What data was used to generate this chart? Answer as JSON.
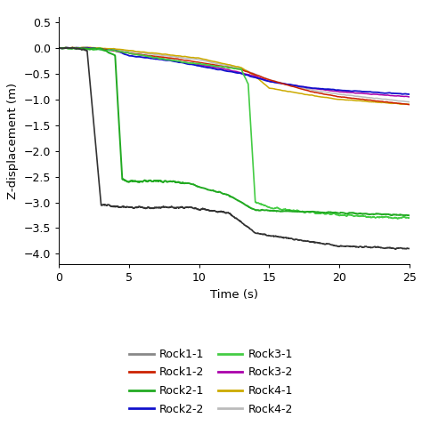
{
  "xlim": [
    0,
    25
  ],
  "ylim": [
    -4.2,
    0.6
  ],
  "yticks": [
    0.5,
    0.0,
    -0.5,
    -1.0,
    -1.5,
    -2.0,
    -2.5,
    -3.0,
    -3.5,
    -4.0
  ],
  "xticks": [
    0,
    5,
    10,
    15,
    20,
    25
  ],
  "xlabel": "Time (s)",
  "ylabel": "Z-displacement (m)",
  "colors": {
    "Rock1-1": "#333333",
    "Rock1-2": "#cc2200",
    "Rock2-1": "#22aa22",
    "Rock2-2": "#1111cc",
    "Rock3-1": "#44cc44",
    "Rock3-2": "#aa00aa",
    "Rock4-1": "#ccaa00",
    "Rock4-2": "#bbbbbb"
  },
  "legend_colors": {
    "Rock1-1": "#888888",
    "Rock1-2": "#cc2200",
    "Rock2-1": "#22aa22",
    "Rock2-2": "#1111cc",
    "Rock3-1": "#44cc44",
    "Rock3-2": "#aa00aa",
    "Rock4-1": "#ccaa00",
    "Rock4-2": "#bbbbbb"
  },
  "bg_color": "#ffffff",
  "curves": {
    "Rock1-1": {
      "segments": [
        [
          0,
          0.0
        ],
        [
          1,
          0.0
        ],
        [
          2,
          -0.05
        ],
        [
          3,
          -3.05
        ],
        [
          5,
          -3.1
        ],
        [
          9,
          -3.1
        ],
        [
          10,
          -3.12
        ],
        [
          12,
          -3.2
        ],
        [
          13,
          -3.38
        ],
        [
          14,
          -3.6
        ],
        [
          20,
          -3.85
        ],
        [
          25,
          -3.9
        ]
      ],
      "noise": 0.025,
      "lw": 1.2
    },
    "Rock1-2": {
      "segments": [
        [
          0,
          0.0
        ],
        [
          1,
          0.0
        ],
        [
          3,
          -0.02
        ],
        [
          5,
          -0.1
        ],
        [
          8,
          -0.2
        ],
        [
          10,
          -0.28
        ],
        [
          13,
          -0.42
        ],
        [
          15,
          -0.62
        ],
        [
          18,
          -0.85
        ],
        [
          20,
          -0.95
        ],
        [
          25,
          -1.1
        ]
      ],
      "noise": 0.012,
      "lw": 1.1
    },
    "Rock2-1": {
      "segments": [
        [
          0,
          0.0
        ],
        [
          3,
          -0.02
        ],
        [
          4,
          -0.15
        ],
        [
          4.5,
          -2.55
        ],
        [
          5,
          -2.6
        ],
        [
          7,
          -2.58
        ],
        [
          8,
          -2.6
        ],
        [
          9,
          -2.62
        ],
        [
          9.5,
          -2.65
        ],
        [
          10,
          -2.7
        ],
        [
          12,
          -2.85
        ],
        [
          13,
          -3.0
        ],
        [
          14,
          -3.15
        ],
        [
          25,
          -3.25
        ]
      ],
      "noise": 0.022,
      "lw": 1.4
    },
    "Rock2-2": {
      "segments": [
        [
          0,
          0.0
        ],
        [
          2,
          0.0
        ],
        [
          4,
          -0.05
        ],
        [
          5,
          -0.15
        ],
        [
          8,
          -0.25
        ],
        [
          10,
          -0.35
        ],
        [
          13,
          -0.5
        ],
        [
          15,
          -0.65
        ],
        [
          18,
          -0.78
        ],
        [
          20,
          -0.82
        ],
        [
          25,
          -0.9
        ]
      ],
      "noise": 0.012,
      "lw": 1.3
    },
    "Rock3-1": {
      "segments": [
        [
          0,
          0.0
        ],
        [
          4,
          -0.05
        ],
        [
          6,
          -0.15
        ],
        [
          9,
          -0.28
        ],
        [
          12,
          -0.38
        ],
        [
          13,
          -0.42
        ],
        [
          13.5,
          -0.7
        ],
        [
          14,
          -3.0
        ],
        [
          15,
          -3.1
        ],
        [
          18,
          -3.2
        ],
        [
          22,
          -3.28
        ],
        [
          25,
          -3.3
        ]
      ],
      "noise": 0.022,
      "lw": 1.2
    },
    "Rock3-2": {
      "segments": [
        [
          0,
          0.0
        ],
        [
          2,
          0.0
        ],
        [
          4,
          -0.05
        ],
        [
          6,
          -0.15
        ],
        [
          9,
          -0.28
        ],
        [
          12,
          -0.42
        ],
        [
          14,
          -0.55
        ],
        [
          15,
          -0.65
        ],
        [
          18,
          -0.78
        ],
        [
          20,
          -0.85
        ],
        [
          25,
          -0.95
        ]
      ],
      "noise": 0.012,
      "lw": 1.1
    },
    "Rock4-1": {
      "segments": [
        [
          0,
          0.0
        ],
        [
          2,
          0.01
        ],
        [
          4,
          -0.02
        ],
        [
          6,
          -0.08
        ],
        [
          10,
          -0.2
        ],
        [
          13,
          -0.38
        ],
        [
          14,
          -0.55
        ],
        [
          15,
          -0.78
        ],
        [
          18,
          -0.92
        ],
        [
          20,
          -1.0
        ],
        [
          25,
          -1.1
        ]
      ],
      "noise": 0.012,
      "lw": 1.1
    },
    "Rock4-2": {
      "segments": [
        [
          0,
          0.0
        ],
        [
          2,
          0.0
        ],
        [
          4,
          -0.03
        ],
        [
          6,
          -0.1
        ],
        [
          10,
          -0.23
        ],
        [
          13,
          -0.4
        ],
        [
          15,
          -0.62
        ],
        [
          18,
          -0.82
        ],
        [
          20,
          -0.9
        ],
        [
          25,
          -1.05
        ]
      ],
      "noise": 0.012,
      "lw": 1.1
    }
  },
  "legend_order": [
    "Rock1-1",
    "Rock1-2",
    "Rock2-1",
    "Rock2-2",
    "Rock3-1",
    "Rock3-2",
    "Rock4-1",
    "Rock4-2"
  ]
}
